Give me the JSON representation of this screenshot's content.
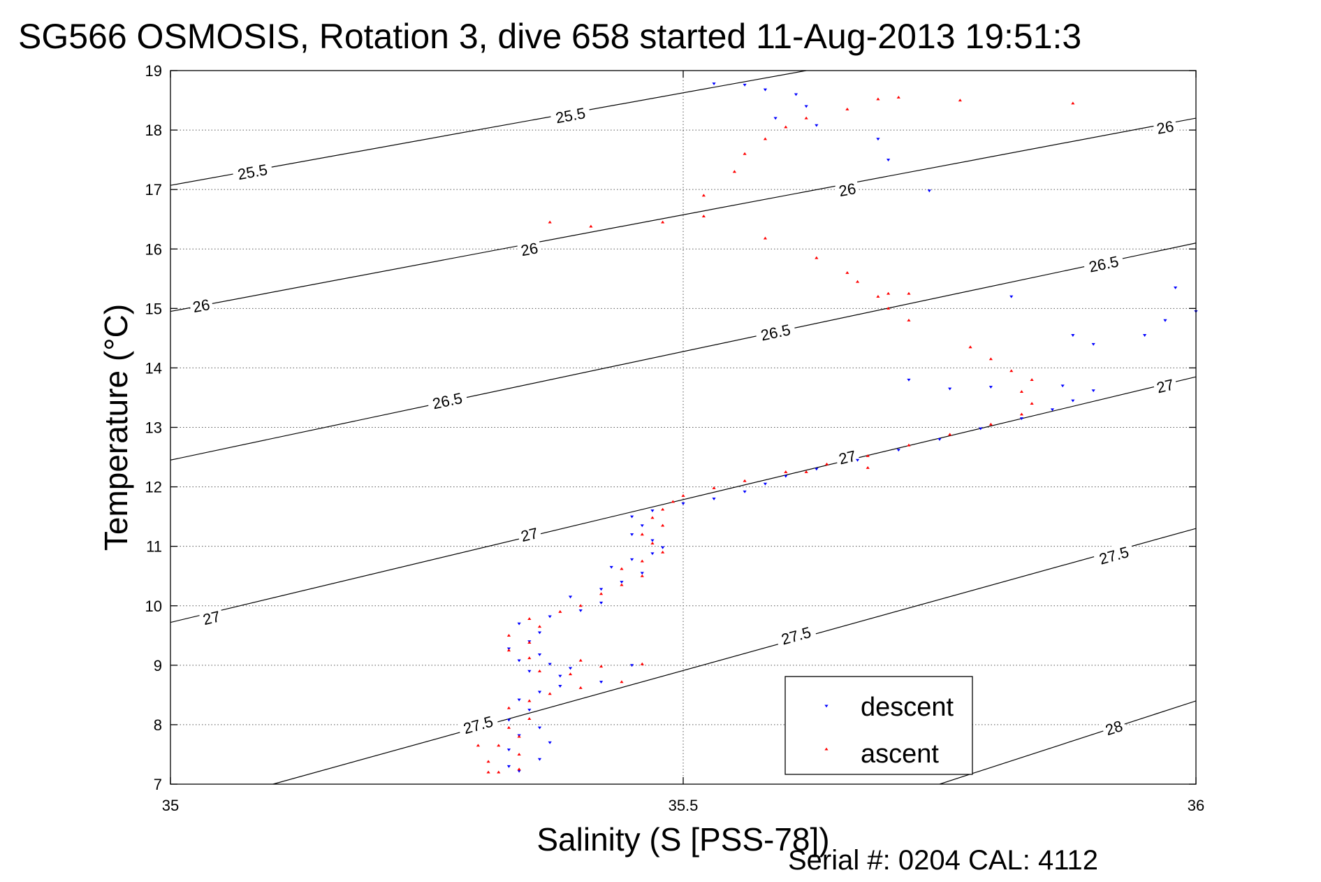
{
  "chart_data": {
    "type": "scatter",
    "title": "SG566 OSMOSIS, Rotation 3, dive 658 started 11-Aug-2013 19:51:3",
    "xlabel": "Salinity (S [PSS-78])",
    "ylabel": "Temperature (°C)",
    "footer": "Serial #: 0204  CAL: 4112",
    "xlim": [
      35,
      36
    ],
    "ylim": [
      7,
      19
    ],
    "xticks": [
      "35",
      "35.5",
      "36"
    ],
    "yticks": [
      "7",
      "8",
      "9",
      "10",
      "11",
      "12",
      "13",
      "14",
      "15",
      "16",
      "17",
      "18",
      "19"
    ],
    "grid": true,
    "legend": {
      "placement": "bottom-right",
      "entries": [
        "descent",
        "ascent"
      ]
    },
    "colors": {
      "descent": "#0000ff",
      "ascent": "#ff0000",
      "contour": "#000000"
    },
    "contours": [
      {
        "level": 25.5,
        "points": [
          [
            35.0,
            17.07
          ],
          [
            35.62,
            19.0
          ]
        ],
        "labels": [
          {
            "text": "25.5",
            "x": 35.08,
            "y": 17.3
          },
          {
            "text": "25.5",
            "x": 35.39,
            "y": 18.25
          }
        ]
      },
      {
        "level": 26,
        "points": [
          [
            35.0,
            14.95
          ],
          [
            36.0,
            18.2
          ]
        ],
        "labels": [
          {
            "text": "26",
            "x": 35.03,
            "y": 15.05
          },
          {
            "text": "26",
            "x": 35.35,
            "y": 16.0
          },
          {
            "text": "26",
            "x": 35.66,
            "y": 17.0
          },
          {
            "text": "26",
            "x": 35.97,
            "y": 18.05
          }
        ]
      },
      {
        "level": 26.5,
        "points": [
          [
            35.0,
            12.45
          ],
          [
            36.0,
            16.1
          ]
        ],
        "labels": [
          {
            "text": "26.5",
            "x": 35.27,
            "y": 13.45
          },
          {
            "text": "26.5",
            "x": 35.59,
            "y": 14.6
          },
          {
            "text": "26.5",
            "x": 35.91,
            "y": 15.75
          }
        ]
      },
      {
        "level": 27,
        "points": [
          [
            35.0,
            9.72
          ],
          [
            36.0,
            13.85
          ]
        ],
        "labels": [
          {
            "text": "27",
            "x": 35.04,
            "y": 9.8
          },
          {
            "text": "27",
            "x": 35.35,
            "y": 11.2
          },
          {
            "text": "27",
            "x": 35.66,
            "y": 12.5
          },
          {
            "text": "27",
            "x": 35.97,
            "y": 13.7
          }
        ]
      },
      {
        "level": 27.5,
        "points": [
          [
            35.1,
            7.0
          ],
          [
            36.0,
            11.3
          ]
        ],
        "labels": [
          {
            "text": "27.5",
            "x": 35.3,
            "y": 8.0
          },
          {
            "text": "27.5",
            "x": 35.61,
            "y": 9.5
          },
          {
            "text": "27.5",
            "x": 35.92,
            "y": 10.85
          }
        ]
      },
      {
        "level": 28,
        "points": [
          [
            35.75,
            7.0
          ],
          [
            36.0,
            8.4
          ]
        ],
        "labels": [
          {
            "text": "28",
            "x": 35.92,
            "y": 7.95
          }
        ]
      }
    ],
    "series": [
      {
        "name": "descent",
        "marker": "triangle-down",
        "points": [
          [
            35.34,
            7.22
          ],
          [
            35.33,
            7.3
          ],
          [
            35.36,
            7.42
          ],
          [
            35.33,
            7.58
          ],
          [
            35.37,
            7.7
          ],
          [
            35.34,
            7.82
          ],
          [
            35.36,
            7.95
          ],
          [
            35.33,
            8.08
          ],
          [
            35.35,
            8.25
          ],
          [
            35.34,
            8.42
          ],
          [
            35.36,
            8.55
          ],
          [
            35.38,
            8.65
          ],
          [
            35.42,
            8.72
          ],
          [
            35.38,
            8.82
          ],
          [
            35.35,
            8.9
          ],
          [
            35.39,
            8.95
          ],
          [
            35.45,
            9.0
          ],
          [
            35.37,
            9.02
          ],
          [
            35.34,
            9.08
          ],
          [
            35.36,
            9.18
          ],
          [
            35.33,
            9.28
          ],
          [
            35.35,
            9.4
          ],
          [
            35.36,
            9.55
          ],
          [
            35.34,
            9.7
          ],
          [
            35.37,
            9.82
          ],
          [
            35.4,
            9.92
          ],
          [
            35.42,
            10.05
          ],
          [
            35.39,
            10.15
          ],
          [
            35.42,
            10.28
          ],
          [
            35.44,
            10.4
          ],
          [
            35.46,
            10.55
          ],
          [
            35.43,
            10.65
          ],
          [
            35.45,
            10.78
          ],
          [
            35.47,
            10.88
          ],
          [
            35.48,
            10.98
          ],
          [
            35.47,
            11.1
          ],
          [
            35.45,
            11.2
          ],
          [
            35.46,
            11.35
          ],
          [
            35.45,
            11.5
          ],
          [
            35.47,
            11.6
          ],
          [
            35.5,
            11.72
          ],
          [
            35.53,
            11.8
          ],
          [
            35.56,
            11.92
          ],
          [
            35.58,
            12.05
          ],
          [
            35.6,
            12.18
          ],
          [
            35.63,
            12.3
          ],
          [
            35.67,
            12.45
          ],
          [
            35.71,
            12.62
          ],
          [
            35.75,
            12.8
          ],
          [
            35.79,
            12.98
          ],
          [
            35.83,
            13.15
          ],
          [
            35.86,
            13.3
          ],
          [
            35.88,
            13.45
          ],
          [
            35.9,
            13.62
          ],
          [
            35.87,
            13.7
          ],
          [
            35.8,
            13.68
          ],
          [
            35.76,
            13.65
          ],
          [
            35.72,
            13.8
          ],
          [
            35.88,
            14.55
          ],
          [
            35.9,
            14.4
          ],
          [
            35.95,
            14.55
          ],
          [
            35.97,
            14.8
          ],
          [
            36.0,
            14.95
          ],
          [
            35.98,
            15.35
          ],
          [
            35.82,
            15.2
          ],
          [
            35.74,
            16.98
          ],
          [
            35.7,
            17.5
          ],
          [
            35.69,
            17.85
          ],
          [
            35.63,
            18.08
          ],
          [
            35.59,
            18.2
          ],
          [
            35.62,
            18.4
          ],
          [
            35.61,
            18.6
          ],
          [
            35.58,
            18.68
          ],
          [
            35.56,
            18.76
          ],
          [
            35.53,
            18.78
          ]
        ]
      },
      {
        "name": "ascent",
        "marker": "triangle-up",
        "points": [
          [
            35.32,
            7.2
          ],
          [
            35.34,
            7.25
          ],
          [
            35.31,
            7.38
          ],
          [
            35.34,
            7.5
          ],
          [
            35.32,
            7.65
          ],
          [
            35.34,
            7.8
          ],
          [
            35.33,
            7.95
          ],
          [
            35.35,
            8.1
          ],
          [
            35.33,
            8.28
          ],
          [
            35.35,
            8.4
          ],
          [
            35.37,
            8.52
          ],
          [
            35.4,
            8.62
          ],
          [
            35.44,
            8.72
          ],
          [
            35.39,
            8.85
          ],
          [
            35.36,
            8.9
          ],
          [
            35.42,
            8.98
          ],
          [
            35.46,
            9.02
          ],
          [
            35.4,
            9.08
          ],
          [
            35.35,
            9.12
          ],
          [
            35.33,
            9.25
          ],
          [
            35.35,
            9.38
          ],
          [
            35.33,
            9.5
          ],
          [
            35.36,
            9.65
          ],
          [
            35.35,
            9.78
          ],
          [
            35.38,
            9.9
          ],
          [
            35.4,
            10.0
          ],
          [
            35.42,
            10.2
          ],
          [
            35.44,
            10.35
          ],
          [
            35.46,
            10.5
          ],
          [
            35.44,
            10.62
          ],
          [
            35.46,
            10.75
          ],
          [
            35.48,
            10.9
          ],
          [
            35.47,
            11.05
          ],
          [
            35.46,
            11.2
          ],
          [
            35.48,
            11.35
          ],
          [
            35.47,
            11.48
          ],
          [
            35.48,
            11.62
          ],
          [
            35.49,
            11.75
          ],
          [
            35.5,
            11.85
          ],
          [
            35.53,
            11.98
          ],
          [
            35.56,
            12.1
          ],
          [
            35.6,
            12.25
          ],
          [
            35.64,
            12.38
          ],
          [
            35.68,
            12.52
          ],
          [
            35.72,
            12.7
          ],
          [
            35.76,
            12.88
          ],
          [
            35.8,
            13.05
          ],
          [
            35.83,
            13.22
          ],
          [
            35.84,
            13.4
          ],
          [
            35.83,
            13.6
          ],
          [
            35.84,
            13.8
          ],
          [
            35.82,
            13.95
          ],
          [
            35.8,
            14.15
          ],
          [
            35.78,
            14.35
          ],
          [
            35.72,
            14.8
          ],
          [
            35.7,
            15.0
          ],
          [
            35.69,
            15.2
          ],
          [
            35.67,
            15.45
          ],
          [
            35.7,
            15.25
          ],
          [
            35.66,
            15.6
          ],
          [
            35.63,
            15.85
          ],
          [
            35.58,
            16.18
          ],
          [
            35.52,
            16.55
          ],
          [
            35.48,
            16.45
          ],
          [
            35.41,
            16.38
          ],
          [
            35.37,
            16.45
          ],
          [
            35.52,
            16.9
          ],
          [
            35.55,
            17.3
          ],
          [
            35.56,
            17.6
          ],
          [
            35.58,
            17.85
          ],
          [
            35.6,
            18.05
          ],
          [
            35.62,
            18.2
          ],
          [
            35.66,
            18.35
          ],
          [
            35.69,
            18.52
          ],
          [
            35.71,
            18.55
          ],
          [
            35.77,
            18.5
          ],
          [
            35.88,
            18.45
          ],
          [
            35.31,
            7.2
          ],
          [
            35.3,
            7.65
          ],
          [
            35.62,
            12.25
          ],
          [
            35.68,
            12.32
          ],
          [
            35.72,
            15.25
          ]
        ]
      }
    ]
  }
}
